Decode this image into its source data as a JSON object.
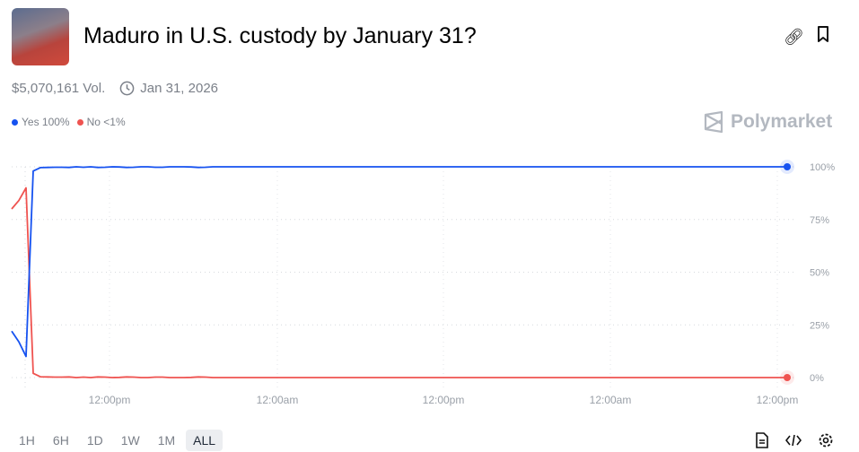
{
  "header": {
    "title": "Maduro in U.S. custody by January 31?",
    "volume": "$5,070,161 Vol.",
    "end_date": "Jan 31, 2026",
    "icons": [
      "link-icon",
      "bookmark-icon",
      "clock-icon"
    ]
  },
  "brand": "Polymarket",
  "time_tabs": [
    "1H",
    "6H",
    "1D",
    "1W",
    "1M",
    "ALL"
  ],
  "active_tab": "ALL",
  "footer_icons": [
    "document-icon",
    "embed-code-icon",
    "settings-gear-icon"
  ],
  "chart_data": {
    "type": "line",
    "ylim": [
      0,
      100
    ],
    "y_ticks": [
      "100%",
      "75%",
      "50%",
      "25%",
      "0%"
    ],
    "y_tick_values": [
      100,
      75,
      50,
      25,
      0
    ],
    "x_ticks": [
      "12:00pm",
      "12:00am",
      "12:00pm",
      "12:00am",
      "12:00pm"
    ],
    "grid": true,
    "legend": "top-left",
    "series": [
      {
        "name": "Yes",
        "label": "Yes 100%",
        "color": "#1652f0",
        "values": [
          22,
          17,
          10,
          98,
          99.6,
          99.7,
          99.8,
          99.8,
          99.7,
          100,
          99.8,
          100,
          99.7,
          99.8,
          100,
          99.9,
          99.7,
          99.8,
          100,
          100,
          99.8,
          99.8,
          100,
          100,
          100,
          99.9,
          99.7,
          99.8,
          100,
          100,
          100,
          100,
          100,
          100,
          100,
          100,
          100,
          100,
          100,
          100,
          100,
          100,
          100,
          100,
          100,
          100,
          100,
          100,
          100,
          100,
          100,
          100,
          100,
          100,
          100,
          100,
          100,
          100,
          100,
          100,
          100,
          100,
          100,
          100,
          100,
          100,
          100,
          100,
          100,
          100,
          100,
          100,
          100,
          100,
          100,
          100,
          100,
          100,
          100,
          100,
          100,
          100,
          100,
          100,
          100,
          100,
          100,
          100,
          100,
          100,
          100,
          100,
          100,
          100,
          100,
          100,
          100,
          100,
          100,
          100,
          100,
          100,
          100,
          100,
          100,
          100,
          100,
          100,
          100
        ]
      },
      {
        "name": "No",
        "label": "No <1%",
        "color": "#ef5350",
        "values": [
          80,
          84,
          90,
          2,
          0.4,
          0.3,
          0.2,
          0.2,
          0.3,
          0,
          0.2,
          0,
          0.3,
          0.2,
          0,
          0.1,
          0.3,
          0.2,
          0,
          0,
          0.2,
          0.2,
          0,
          0,
          0,
          0.1,
          0.3,
          0.2,
          0,
          0,
          0,
          0,
          0,
          0,
          0,
          0,
          0,
          0,
          0,
          0,
          0,
          0,
          0,
          0,
          0,
          0,
          0,
          0,
          0,
          0,
          0,
          0,
          0,
          0,
          0,
          0,
          0,
          0,
          0,
          0,
          0,
          0,
          0,
          0,
          0,
          0,
          0,
          0,
          0,
          0,
          0,
          0,
          0,
          0,
          0,
          0,
          0,
          0,
          0,
          0,
          0,
          0,
          0,
          0,
          0,
          0,
          0,
          0,
          0,
          0,
          0,
          0,
          0,
          0,
          0,
          0,
          0,
          0,
          0,
          0,
          0,
          0,
          0,
          0,
          0,
          0,
          0,
          0,
          0
        ]
      }
    ]
  }
}
